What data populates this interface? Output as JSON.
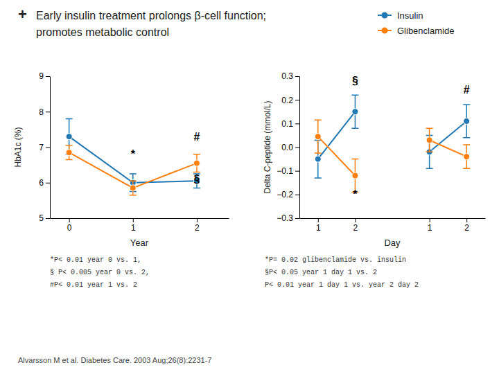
{
  "chart_data": [
    {
      "type": "line",
      "title_mark": "+",
      "title": "Early insulin treatment prolongs β-cell function;",
      "subtitle": "promotes metabolic control",
      "x": [
        0,
        1,
        2
      ],
      "xlim": [
        -0.3,
        2.5
      ],
      "xticks": [
        0,
        1,
        2
      ],
      "xlabel": "Year",
      "ylabel": "HbA1c (%)",
      "ylim": [
        5,
        9
      ],
      "yticks": [
        5,
        6,
        7,
        8,
        9
      ],
      "marker": "circle",
      "series": [
        {
          "values": [
            7.3,
            6.0,
            6.05
          ],
          "errors": [
            0.5,
            0.25,
            0.2
          ]
        },
        {
          "values": [
            6.85,
            5.85,
            6.55
          ],
          "errors": [
            0.2,
            0.2,
            0.25
          ]
        }
      ],
      "annotations": [
        {
          "text": "*",
          "x": 1,
          "y": 6.65
        },
        {
          "text": "#",
          "x": 2,
          "y": 7.15
        },
        {
          "text": "§",
          "x": 2,
          "y": 5.95
        }
      ],
      "footnotes": [
        "*P< 0.01 year 0 vs. 1,",
        "§ P< 0.005 year 0 vs. 2,",
        "#P< 0.01 year 1 vs. 2"
      ]
    },
    {
      "type": "line",
      "categories": [
        "1",
        "2",
        null,
        "1",
        "2"
      ],
      "xlabel": "Day",
      "ylabel": "Delta C-peptide (mmol/L)",
      "ylim": [
        -0.3,
        0.3
      ],
      "yticks": [
        {
          "value": -0.3,
          "label": "−0.3"
        },
        {
          "value": -0.2,
          "label": "−0.2"
        },
        {
          "value": -0.1,
          "label": "−0.1"
        },
        {
          "value": 0.0,
          "label": "0.0"
        },
        0.1,
        0.2,
        0.3
      ],
      "marker": "circle",
      "legend": "top",
      "series": [
        {
          "name": "Insulin",
          "values": [
            -0.05,
            0.15,
            null,
            -0.02,
            0.11
          ],
          "errors": [
            0.08,
            0.07,
            null,
            0.07,
            0.07
          ]
        },
        {
          "name": "Glibenclamide",
          "values": [
            0.045,
            -0.12,
            null,
            0.03,
            -0.04
          ],
          "errors": [
            0.07,
            0.07,
            null,
            0.05,
            0.05
          ]
        }
      ],
      "annotations": [
        {
          "text": "§",
          "x": 1,
          "y": 0.26
        },
        {
          "text": "*",
          "x": 1,
          "y": -0.22
        },
        {
          "text": "#",
          "x": 4,
          "y": 0.22
        }
      ],
      "footnotes": [
        "*P= 0.02 glibenclamide vs. insulin",
        "§P< 0.05 year 1 day 1 vs. 2",
        "P< 0.01 year 1 day 1 vs. year 2 day 2"
      ],
      "source": "Alvarsson M et al. Diabetes Care. 2003 Aug;26(8):2231-7"
    }
  ]
}
